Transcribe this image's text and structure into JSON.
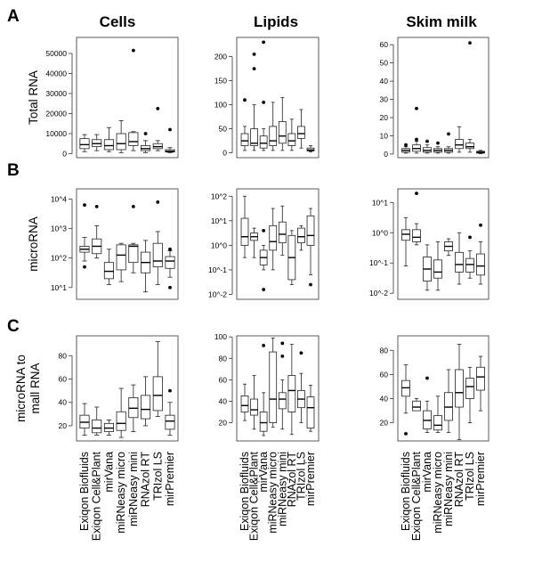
{
  "column_titles": [
    "Cells",
    "Lipids",
    "Skim milk"
  ],
  "row_letters": [
    "A",
    "B",
    "C"
  ],
  "row_ylabels": [
    [
      "Total RNA"
    ],
    [
      "microRNA"
    ],
    [
      "microRNA to",
      "mall RNA"
    ]
  ],
  "chart_data": [
    {
      "type": "box",
      "panel": "A-Cells",
      "row": 0,
      "col": 0,
      "scale": "linear",
      "ylim": [
        -2000,
        58000
      ],
      "yticks": [
        {
          "v": 0,
          "label": "0"
        },
        {
          "v": 10000,
          "label": "10000"
        },
        {
          "v": 20000,
          "label": "20000"
        },
        {
          "v": 30000,
          "label": "30000"
        },
        {
          "v": 40000,
          "label": "40000"
        },
        {
          "v": 50000,
          "label": "50000"
        }
      ],
      "boxes": [
        {
          "min": 1000,
          "q1": 2500,
          "med": 4500,
          "q3": 7500,
          "max": 9500,
          "outliers": []
        },
        {
          "min": 1500,
          "q1": 3500,
          "med": 5000,
          "q3": 7000,
          "max": 9500,
          "outliers": []
        },
        {
          "min": 1000,
          "q1": 2000,
          "med": 4000,
          "q3": 7000,
          "max": 13000,
          "outliers": []
        },
        {
          "min": 500,
          "q1": 2000,
          "med": 5000,
          "q3": 10000,
          "max": 16500,
          "outliers": []
        },
        {
          "min": 1500,
          "q1": 4000,
          "med": 6000,
          "q3": 10500,
          "max": 11000,
          "outliers": [
            51500
          ]
        },
        {
          "min": 500,
          "q1": 1500,
          "med": 2500,
          "q3": 4000,
          "max": 6500,
          "outliers": [
            10000
          ]
        },
        {
          "min": 1500,
          "q1": 2500,
          "med": 3500,
          "q3": 5000,
          "max": 6500,
          "outliers": [
            22500
          ]
        },
        {
          "min": 500,
          "q1": 800,
          "med": 1200,
          "q3": 2000,
          "max": 3000,
          "outliers": [
            12000
          ]
        }
      ]
    },
    {
      "type": "box",
      "panel": "A-Lipids",
      "row": 0,
      "col": 1,
      "scale": "linear",
      "ylim": [
        -10,
        240
      ],
      "yticks": [
        {
          "v": 0,
          "label": "0"
        },
        {
          "v": 50,
          "label": "50"
        },
        {
          "v": 100,
          "label": "100"
        },
        {
          "v": 150,
          "label": "150"
        },
        {
          "v": 200,
          "label": "200"
        }
      ],
      "boxes": [
        {
          "min": 5,
          "q1": 15,
          "med": 25,
          "q3": 40,
          "max": 55,
          "outliers": [
            110
          ]
        },
        {
          "min": 5,
          "q1": 15,
          "med": 20,
          "q3": 50,
          "max": 100,
          "outliers": [
            175,
            205
          ]
        },
        {
          "min": 5,
          "q1": 10,
          "med": 20,
          "q3": 35,
          "max": 50,
          "outliers": [
            105,
            230
          ]
        },
        {
          "min": 5,
          "q1": 15,
          "med": 25,
          "q3": 55,
          "max": 105,
          "outliers": []
        },
        {
          "min": 5,
          "q1": 20,
          "med": 35,
          "q3": 65,
          "max": 115,
          "outliers": []
        },
        {
          "min": 5,
          "q1": 15,
          "med": 25,
          "q3": 40,
          "max": 70,
          "outliers": []
        },
        {
          "min": 10,
          "q1": 30,
          "med": 40,
          "q3": 55,
          "max": 90,
          "outliers": []
        },
        {
          "min": 2,
          "q1": 4,
          "med": 6,
          "q3": 10,
          "max": 15,
          "outliers": []
        }
      ]
    },
    {
      "type": "box",
      "panel": "A-Skim milk",
      "row": 0,
      "col": 2,
      "scale": "linear",
      "ylim": [
        -2,
        64
      ],
      "yticks": [
        {
          "v": 0,
          "label": "0"
        },
        {
          "v": 10,
          "label": "10"
        },
        {
          "v": 20,
          "label": "20"
        },
        {
          "v": 30,
          "label": "30"
        },
        {
          "v": 40,
          "label": "40"
        },
        {
          "v": 50,
          "label": "50"
        },
        {
          "v": 60,
          "label": "60"
        }
      ],
      "boxes": [
        {
          "min": 0.5,
          "q1": 1,
          "med": 2,
          "q3": 3,
          "max": 4,
          "outliers": [
            5
          ]
        },
        {
          "min": 0.5,
          "q1": 1.5,
          "med": 3,
          "q3": 5,
          "max": 7,
          "outliers": [
            8,
            25
          ]
        },
        {
          "min": 0.5,
          "q1": 1,
          "med": 2,
          "q3": 3.5,
          "max": 5,
          "outliers": [
            7
          ]
        },
        {
          "min": 0.5,
          "q1": 1,
          "med": 2,
          "q3": 3,
          "max": 4,
          "outliers": [
            6
          ]
        },
        {
          "min": 0.5,
          "q1": 1,
          "med": 2,
          "q3": 3,
          "max": 4,
          "outliers": [
            11
          ]
        },
        {
          "min": 1,
          "q1": 3,
          "med": 5,
          "q3": 8,
          "max": 15,
          "outliers": []
        },
        {
          "min": 1,
          "q1": 3,
          "med": 4,
          "q3": 6,
          "max": 8,
          "outliers": [
            61
          ]
        },
        {
          "min": 0.2,
          "q1": 0.5,
          "med": 1,
          "q3": 1.5,
          "max": 2,
          "outliers": []
        }
      ]
    },
    {
      "type": "box",
      "panel": "B-Cells",
      "row": 1,
      "col": 0,
      "scale": "log10",
      "ylim": [
        0.6,
        4.35
      ],
      "yticks": [
        {
          "v": 1,
          "label": "10^1"
        },
        {
          "v": 2,
          "label": "10^2"
        },
        {
          "v": 3,
          "label": "10^3"
        },
        {
          "v": 4,
          "label": "10^4"
        }
      ],
      "boxes": [
        {
          "min": 1.9,
          "q1": 2.2,
          "med": 2.3,
          "q3": 2.4,
          "max": 2.7,
          "outliers": [
            3.8,
            1.7
          ]
        },
        {
          "min": 2.0,
          "q1": 2.15,
          "med": 2.4,
          "q3": 2.65,
          "max": 3.1,
          "outliers": [
            3.75
          ]
        },
        {
          "min": 1.1,
          "q1": 1.3,
          "med": 1.55,
          "q3": 1.85,
          "max": 2.3,
          "outliers": []
        },
        {
          "min": 1.2,
          "q1": 1.6,
          "med": 2.1,
          "q3": 2.45,
          "max": 2.5,
          "outliers": []
        },
        {
          "min": 1.5,
          "q1": 1.85,
          "med": 2.4,
          "q3": 2.45,
          "max": 2.5,
          "outliers": [
            3.75
          ]
        },
        {
          "min": 0.85,
          "q1": 1.5,
          "med": 1.85,
          "q3": 2.2,
          "max": 2.6,
          "outliers": []
        },
        {
          "min": 1.1,
          "q1": 1.7,
          "med": 1.9,
          "q3": 2.5,
          "max": 2.9,
          "outliers": [
            3.9
          ]
        },
        {
          "min": 1.35,
          "q1": 1.65,
          "med": 1.9,
          "q3": 2.05,
          "max": 2.25,
          "outliers": [
            2.3,
            1.0
          ]
        }
      ]
    },
    {
      "type": "box",
      "panel": "B-Lipids",
      "row": 1,
      "col": 1,
      "scale": "log10",
      "ylim": [
        -2.2,
        2.3
      ],
      "yticks": [
        {
          "v": -2,
          "label": "10^-2"
        },
        {
          "v": -1,
          "label": "10^-1"
        },
        {
          "v": 0,
          "label": "10^0"
        },
        {
          "v": 1,
          "label": "10^1"
        },
        {
          "v": 2,
          "label": "10^2"
        }
      ],
      "boxes": [
        {
          "min": -0.5,
          "q1": 0,
          "med": 0.35,
          "q3": 1.1,
          "max": 2,
          "outliers": []
        },
        {
          "min": -0.5,
          "q1": 0.2,
          "med": 0.35,
          "q3": 0.5,
          "max": 0.7,
          "outliers": []
        },
        {
          "min": -1,
          "q1": -0.8,
          "med": -0.5,
          "q3": -0.2,
          "max": 0,
          "outliers": [
            0.6,
            -1.8
          ]
        },
        {
          "min": -1,
          "q1": -0.2,
          "med": 0.15,
          "q3": 0.8,
          "max": 1.5,
          "outliers": []
        },
        {
          "min": -0.4,
          "q1": 0.1,
          "med": 0.45,
          "q3": 0.95,
          "max": 1.6,
          "outliers": []
        },
        {
          "min": -1.6,
          "q1": -1.4,
          "med": -0.5,
          "q3": 0.4,
          "max": 0.6,
          "outliers": []
        },
        {
          "min": -0.2,
          "q1": 0.1,
          "med": 0.35,
          "q3": 0.7,
          "max": 0.8,
          "outliers": []
        },
        {
          "min": -1.2,
          "q1": 0,
          "med": 0.4,
          "q3": 1.2,
          "max": 1.5,
          "outliers": [
            -1.6
          ]
        }
      ]
    },
    {
      "type": "box",
      "panel": "B-Skim milk",
      "row": 1,
      "col": 2,
      "scale": "log10",
      "ylim": [
        -2.2,
        1.45
      ],
      "yticks": [
        {
          "v": -2,
          "label": "10^-2"
        },
        {
          "v": -1,
          "label": "10^-1"
        },
        {
          "v": 0,
          "label": "10^0"
        },
        {
          "v": 1,
          "label": "10^1"
        }
      ],
      "boxes": [
        {
          "min": -1.1,
          "q1": -0.25,
          "med": -0.05,
          "q3": 0.1,
          "max": 0.5,
          "outliers": []
        },
        {
          "min": -0.4,
          "q1": -0.3,
          "med": -0.15,
          "q3": 0.1,
          "max": 0.3,
          "outliers": [
            1.3
          ]
        },
        {
          "min": -1.9,
          "q1": -1.6,
          "med": -1.2,
          "q3": -0.8,
          "max": -0.4,
          "outliers": []
        },
        {
          "min": -1.9,
          "q1": -1.5,
          "med": -1.3,
          "q3": -0.9,
          "max": -0.3,
          "outliers": []
        },
        {
          "min": -0.75,
          "q1": -0.6,
          "med": -0.45,
          "q3": -0.3,
          "max": -0.2,
          "outliers": []
        },
        {
          "min": -1.7,
          "q1": -1.3,
          "med": -1.05,
          "q3": -0.65,
          "max": 0,
          "outliers": []
        },
        {
          "min": -1.5,
          "q1": -1.3,
          "med": -1.05,
          "q3": -0.85,
          "max": -0.6,
          "outliers": [
            -0.15
          ]
        },
        {
          "min": -1.7,
          "q1": -1.4,
          "med": -1.1,
          "q3": -0.7,
          "max": -0.3,
          "outliers": [
            0.25
          ]
        }
      ]
    },
    {
      "type": "box",
      "panel": "C-Cells",
      "row": 2,
      "col": 0,
      "scale": "linear",
      "ylim": [
        7,
        97
      ],
      "yticks": [
        {
          "v": 20,
          "label": "20"
        },
        {
          "v": 40,
          "label": "40"
        },
        {
          "v": 60,
          "label": "60"
        },
        {
          "v": 80,
          "label": "80"
        }
      ],
      "boxes": [
        {
          "min": 12,
          "q1": 18,
          "med": 23,
          "q3": 29,
          "max": 39,
          "outliers": []
        },
        {
          "min": 12,
          "q1": 14,
          "med": 18,
          "q3": 25,
          "max": 36,
          "outliers": []
        },
        {
          "min": 12,
          "q1": 15,
          "med": 18,
          "q3": 22,
          "max": 25,
          "outliers": []
        },
        {
          "min": 10,
          "q1": 16,
          "med": 22,
          "q3": 32,
          "max": 52,
          "outliers": []
        },
        {
          "min": 15,
          "q1": 27,
          "med": 35,
          "q3": 44,
          "max": 55,
          "outliers": []
        },
        {
          "min": 20,
          "q1": 26,
          "med": 34,
          "q3": 46,
          "max": 62,
          "outliers": []
        },
        {
          "min": 28,
          "q1": 33,
          "med": 46,
          "q3": 62,
          "max": 92,
          "outliers": []
        },
        {
          "min": 12,
          "q1": 17,
          "med": 24,
          "q3": 29,
          "max": 40,
          "outliers": [
            50
          ]
        }
      ]
    },
    {
      "type": "box",
      "panel": "C-Lipids",
      "row": 2,
      "col": 1,
      "scale": "linear",
      "ylim": [
        3,
        101
      ],
      "yticks": [
        {
          "v": 20,
          "label": "20"
        },
        {
          "v": 40,
          "label": "40"
        },
        {
          "v": 60,
          "label": "60"
        },
        {
          "v": 80,
          "label": "80"
        },
        {
          "v": 100,
          "label": "100"
        }
      ],
      "boxes": [
        {
          "min": 22,
          "q1": 30,
          "med": 36,
          "q3": 45,
          "max": 56,
          "outliers": []
        },
        {
          "min": 14,
          "q1": 27,
          "med": 32,
          "q3": 42,
          "max": 64,
          "outliers": []
        },
        {
          "min": 8,
          "q1": 12,
          "med": 20,
          "q3": 30,
          "max": 48,
          "outliers": [
            92
          ]
        },
        {
          "min": 16,
          "q1": 20,
          "med": 42,
          "q3": 86,
          "max": 99,
          "outliers": []
        },
        {
          "min": 14,
          "q1": 33,
          "med": 42,
          "q3": 48,
          "max": 60,
          "outliers": [
            82,
            94
          ]
        },
        {
          "min": 9,
          "q1": 30,
          "med": 50,
          "q3": 64,
          "max": 93,
          "outliers": []
        },
        {
          "min": 20,
          "q1": 34,
          "med": 42,
          "q3": 50,
          "max": 66,
          "outliers": [
            85
          ]
        },
        {
          "min": 12,
          "q1": 15,
          "med": 34,
          "q3": 44,
          "max": 55,
          "outliers": []
        }
      ]
    },
    {
      "type": "box",
      "panel": "C-Skim milk",
      "row": 2,
      "col": 2,
      "scale": "linear",
      "ylim": [
        5,
        92
      ],
      "yticks": [
        {
          "v": 20,
          "label": "20"
        },
        {
          "v": 40,
          "label": "40"
        },
        {
          "v": 60,
          "label": "60"
        },
        {
          "v": 80,
          "label": "80"
        }
      ],
      "boxes": [
        {
          "min": 28,
          "q1": 42,
          "med": 49,
          "q3": 55,
          "max": 68,
          "outliers": [
            11
          ]
        },
        {
          "min": 30,
          "q1": 30,
          "med": 33,
          "q3": 38,
          "max": 40,
          "outliers": []
        },
        {
          "min": 12,
          "q1": 15,
          "med": 22,
          "q3": 30,
          "max": 38,
          "outliers": [
            57
          ]
        },
        {
          "min": 12,
          "q1": 14,
          "med": 18,
          "q3": 26,
          "max": 42,
          "outliers": []
        },
        {
          "min": 12,
          "q1": 22,
          "med": 33,
          "q3": 45,
          "max": 64,
          "outliers": []
        },
        {
          "min": 6,
          "q1": 33,
          "med": 45,
          "q3": 64,
          "max": 85,
          "outliers": []
        },
        {
          "min": 20,
          "q1": 40,
          "med": 50,
          "q3": 57,
          "max": 66,
          "outliers": []
        },
        {
          "min": 30,
          "q1": 47,
          "med": 58,
          "q3": 66,
          "max": 75,
          "outliers": []
        }
      ]
    }
  ],
  "categories": [
    "Exiqon Biofluids",
    "Exiqon Cell&Plant",
    "mirVana",
    "miRNeasy micro",
    "miRNeasy mini",
    "RNAzol RT",
    "TRIzol LS",
    "mirPremier"
  ]
}
